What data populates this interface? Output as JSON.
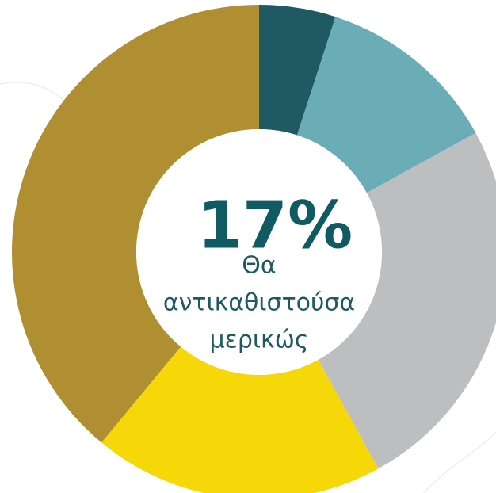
{
  "chart_data": {
    "type": "donut",
    "values": [
      5,
      12,
      25,
      19,
      39
    ],
    "colors": [
      "#1f5a63",
      "#6aadb6",
      "#bdbec0",
      "#f6d808",
      "#b08e32"
    ],
    "center_value": {
      "value": 17,
      "label": "17%"
    },
    "center_text": [
      "Θα",
      "αντικαθιστούσα",
      "μερικώς"
    ]
  }
}
